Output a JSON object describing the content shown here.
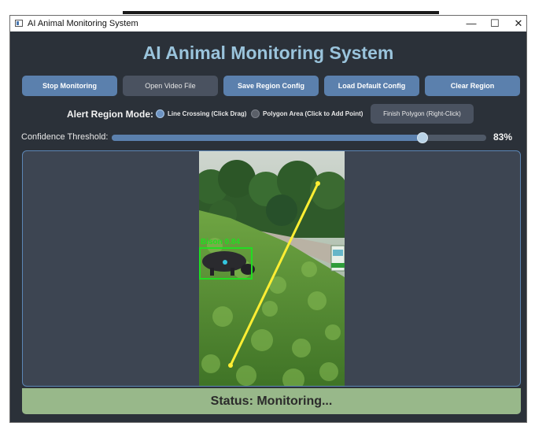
{
  "window": {
    "title": "AI Animal Monitoring System",
    "controls": {
      "minimize": "—",
      "maximize": "☐",
      "close": "✕"
    }
  },
  "app": {
    "heading": "AI Animal Monitoring System"
  },
  "toolbar": {
    "stop_monitoring": "Stop Monitoring",
    "open_video": "Open Video File",
    "save_region": "Save Region Config",
    "load_default": "Load Default Config",
    "clear_region": "Clear Region"
  },
  "mode": {
    "label": "Alert Region Mode:",
    "options": [
      {
        "label": "Line Crossing (Click  Drag)",
        "selected": true
      },
      {
        "label": "Polygon Area (Click to Add Point)",
        "selected": false
      }
    ],
    "finish_button": "Finish Polygon (Right-Click)"
  },
  "confidence": {
    "label": "Confidence Threshold:",
    "value": 0.83,
    "display": "83%"
  },
  "video": {
    "detection_label": "Bison 0.84",
    "alert_line_color": "#ffee33",
    "box_color": "#22dd22"
  },
  "status": {
    "text": "Status: Monitoring..."
  }
}
